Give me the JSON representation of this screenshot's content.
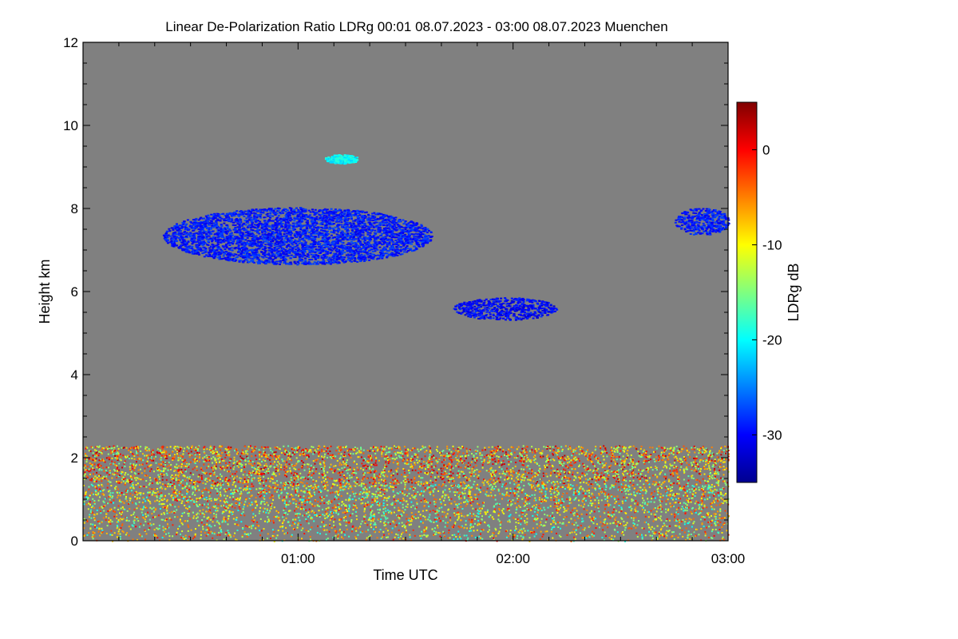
{
  "chart_data": {
    "type": "heatmap",
    "title": "Linear De-Polarization Ratio LDRg   00:01 08.07.2023 - 03:00 08.07.2023 Muenchen",
    "xlabel": "Time UTC",
    "ylabel": "Height km",
    "x_unit": "hours UTC since 00:00",
    "xlim": [
      0,
      3
    ],
    "ylim": [
      0,
      12
    ],
    "x_ticks": [
      {
        "value": 1,
        "label": "01:00"
      },
      {
        "value": 2,
        "label": "02:00"
      },
      {
        "value": 3,
        "label": "03:00"
      }
    ],
    "y_ticks": [
      {
        "value": 0,
        "label": "0"
      },
      {
        "value": 2,
        "label": "2"
      },
      {
        "value": 4,
        "label": "4"
      },
      {
        "value": 6,
        "label": "6"
      },
      {
        "value": 8,
        "label": "8"
      },
      {
        "value": 10,
        "label": "10"
      },
      {
        "value": 12,
        "label": "12"
      }
    ],
    "background_color": "#808080",
    "colorbar": {
      "label": "LDRg dB",
      "range": [
        -35,
        5
      ],
      "ticks": [
        {
          "value": 0,
          "label": "0"
        },
        {
          "value": -10,
          "label": "-10"
        },
        {
          "value": -20,
          "label": "-20"
        },
        {
          "value": -30,
          "label": "-30"
        }
      ],
      "colormap": "jet"
    },
    "features": [
      {
        "name": "cirrus cloud",
        "x_range": [
          0.37,
          1.62
        ],
        "y_range": [
          6.1,
          8.6
        ],
        "ldr_db": -29
      },
      {
        "name": "small cirrus patch",
        "x_range": [
          1.12,
          1.28
        ],
        "y_range": [
          9.0,
          9.4
        ],
        "ldr_db": -20
      },
      {
        "name": "mid-level cloud",
        "x_range": [
          1.72,
          2.2
        ],
        "y_range": [
          5.1,
          6.1
        ],
        "ldr_db": -30
      },
      {
        "name": "cirrus at end",
        "x_range": [
          2.75,
          3.0
        ],
        "y_range": [
          7.1,
          8.3
        ],
        "ldr_db": -29
      },
      {
        "name": "boundary layer aerosol",
        "x_range": [
          0.0,
          3.0
        ],
        "y_range": [
          0.0,
          2.3
        ],
        "ldr_db": -10
      }
    ]
  }
}
